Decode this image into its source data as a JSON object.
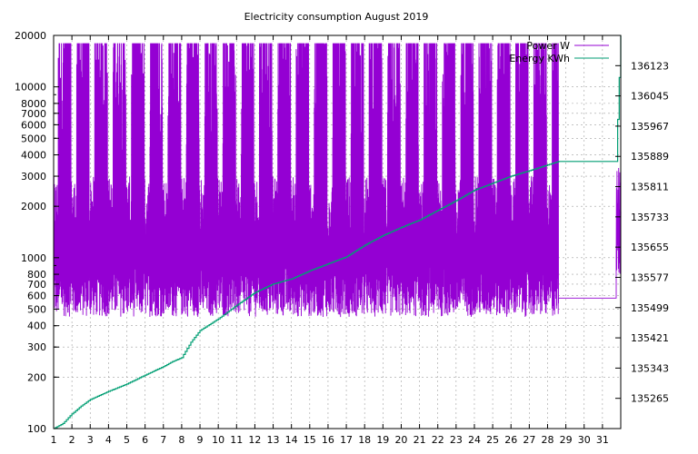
{
  "chart_data": {
    "type": "line",
    "title": "Electricity consumption August 2019",
    "x_axis": {
      "range": [
        1,
        32
      ],
      "ticks": [
        1,
        2,
        3,
        4,
        5,
        6,
        7,
        8,
        9,
        10,
        11,
        12,
        13,
        14,
        15,
        16,
        17,
        18,
        19,
        20,
        21,
        22,
        23,
        24,
        25,
        26,
        27,
        28,
        29,
        30,
        31
      ]
    },
    "y_axis_left": {
      "scale": "log",
      "range": [
        100,
        20000
      ],
      "ticks": [
        100,
        200,
        300,
        400,
        500,
        600,
        700,
        800,
        1000,
        2000,
        3000,
        4000,
        5000,
        6000,
        7000,
        8000,
        10000,
        20000
      ]
    },
    "y_axis_right": {
      "scale": "linear",
      "range": [
        135187,
        136201
      ],
      "ticks": [
        135265,
        135343,
        135421,
        135499,
        135577,
        135655,
        135733,
        135811,
        135889,
        135967,
        136045,
        136123
      ]
    },
    "grid": true,
    "legend": "top-right",
    "series": [
      {
        "name": "Power W",
        "axis": "left",
        "color": "#9400d3",
        "style": "dense impulses",
        "daily_range": [
          {
            "day_start": 1,
            "day_end": 28.6,
            "min": 450,
            "max": 18000
          }
        ],
        "flat_segment": {
          "x": [
            28.6,
            31.75
          ],
          "value": 580
        },
        "end_spike": {
          "x": [
            31.75,
            32
          ],
          "min": 800,
          "max": 3500
        }
      },
      {
        "name": "Energy KWh",
        "axis": "right",
        "color": "#009e73",
        "x": [
          1,
          1.5,
          2,
          2.5,
          3,
          4,
          5,
          6,
          7,
          7.5,
          8,
          8.5,
          9,
          10,
          11,
          12,
          13,
          14,
          15,
          16,
          17,
          18,
          19,
          20,
          21,
          22,
          23,
          24,
          25,
          26,
          27,
          28,
          28.6,
          31.75,
          32
        ],
        "values": [
          135187,
          135200,
          135225,
          135245,
          135262,
          135283,
          135302,
          135325,
          135347,
          135360,
          135370,
          135410,
          135440,
          135470,
          135505,
          135538,
          135560,
          135573,
          135594,
          135612,
          135630,
          135660,
          135685,
          135706,
          135725,
          135750,
          135775,
          135802,
          135820,
          135838,
          135852,
          135867,
          135876,
          135876,
          136201
        ]
      }
    ]
  }
}
